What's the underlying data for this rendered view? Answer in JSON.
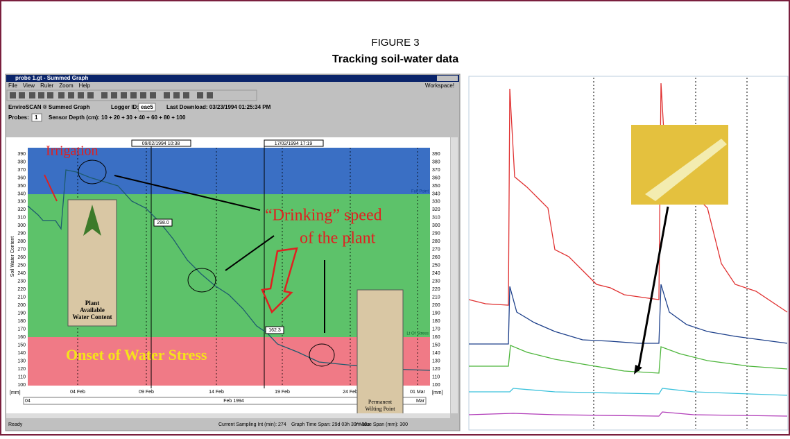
{
  "figure": {
    "label": "FIGURE 3",
    "title": "Tracking soil-water data"
  },
  "window": {
    "title": "probe 1.gt - Summed Graph",
    "menu": [
      "File",
      "View",
      "Ruler",
      "Zoom",
      "Help"
    ],
    "workspace": "Workspace!",
    "info": {
      "app": "EnviroSCAN ® Summed Graph",
      "logger_label": "Logger ID:",
      "logger_id": "eac5",
      "download": "Last Download: 03/23/1994 01:25:34 PM"
    },
    "probes_label": "Probes:",
    "probes": "1",
    "depth": "Sensor Depth (cm): 10 + 20 + 30 + 40 + 60 + 80 + 100",
    "status": [
      "Ready",
      "Current Sampling Int (min): 274",
      "Graph Time Span: 29d 03h 39m 09s",
      "Y Value Span (mm): 300"
    ]
  },
  "graph": {
    "y_label": "Soil Water Content",
    "unit": "[mm]",
    "yticks": [
      "390",
      "380",
      "370",
      "360",
      "350",
      "340",
      "330",
      "320",
      "310",
      "300",
      "290",
      "280",
      "270",
      "260",
      "250",
      "240",
      "230",
      "220",
      "210",
      "200",
      "190",
      "180",
      "170",
      "160",
      "150",
      "140",
      "130",
      "120",
      "110",
      "100"
    ],
    "xticks": [
      "04 Feb",
      "09 Feb",
      "14 Feb",
      "19 Feb",
      "24 Feb",
      "01 Mar"
    ],
    "scroll": {
      "left": "04",
      "center": "Feb 1994",
      "right": "Mar"
    },
    "markers": [
      "09/02/1994 10:38",
      "17/02/1994 17:19"
    ],
    "readouts": [
      "298.0",
      "162.3"
    ],
    "full_point": "Full Point",
    "stress": "Lt Of Stress",
    "annotations": {
      "irrigation": "Irrigation",
      "drinking1": "“Drinking” speed",
      "drinking2": "of the plant",
      "onset": "Onset of Water Stress"
    },
    "plant_caption": [
      "Plant",
      "Available",
      "Water Content"
    ],
    "wilting_caption": [
      "Permanent",
      "Wilting Point"
    ]
  }
}
